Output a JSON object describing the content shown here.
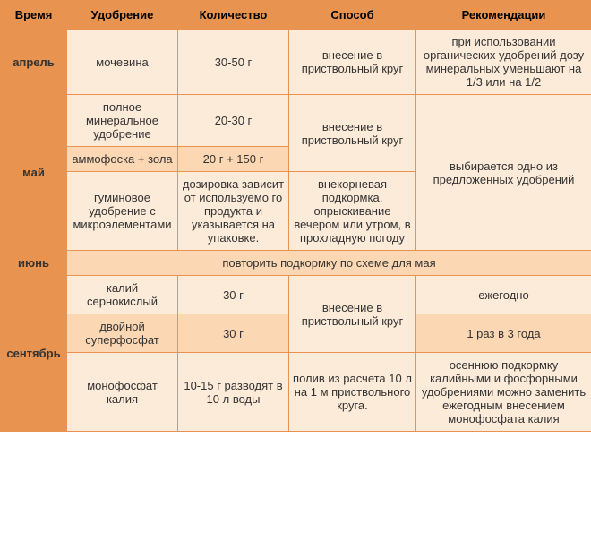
{
  "colors": {
    "header_bg": "#e8934f",
    "light_bg": "#fdebd9",
    "med_bg": "#fbd7b3",
    "border": "#e8934f",
    "text": "#333333"
  },
  "columns": [
    "Время",
    "Удобрение",
    "Количество",
    "Способ",
    "Рекомендации"
  ],
  "months": {
    "april": "апрель",
    "may": "май",
    "june": "июнь",
    "september": "сентябрь"
  },
  "april": {
    "fert": "мочевина",
    "qty": "30-50 г",
    "method": "внесение в приствольный круг",
    "rec": "при использовании органических удобрений дозу минеральных уменьшают на 1/3 или на 1/2"
  },
  "may": {
    "r1_fert": "полное минеральное удобрение",
    "r1_qty": "20-30 г",
    "r12_method": "внесение в приствольный круг",
    "r2_fert": "аммофоска + зола",
    "r2_qty": "20 г + 150 г",
    "r3_fert": "гуминовое удобрение с микроэлемен­тами",
    "r3_qty": "дозировка зависит от используемо го продукта и указывается на упаковке.",
    "r3_method": "внекорневая подкормка, опрыскивание вечером или утром, в прохладную погоду",
    "rec": "выбирается одно из предложенных удобрений"
  },
  "june": {
    "note": "повторить подкормку по схеме для мая"
  },
  "sept": {
    "r1_fert": "калий сернокислый",
    "r1_qty": "30 г",
    "r12_method": "внесение в приствольный круг",
    "r1_rec": "ежегодно",
    "r2_fert": "двойной суперфосфат",
    "r2_qty": "30 г",
    "r2_rec": "1 раз в 3 года",
    "r3_fert": "монофосфат калия",
    "r3_qty": "10-15 г раз­водят в 10 л воды",
    "r3_method": "полив из расчета 10 л на 1 м приствольного круга.",
    "r3_rec": "осеннюю подкормку калийными и фосфорными удо­брениями можно заменить ежегодным внесением монофосфата калия"
  }
}
